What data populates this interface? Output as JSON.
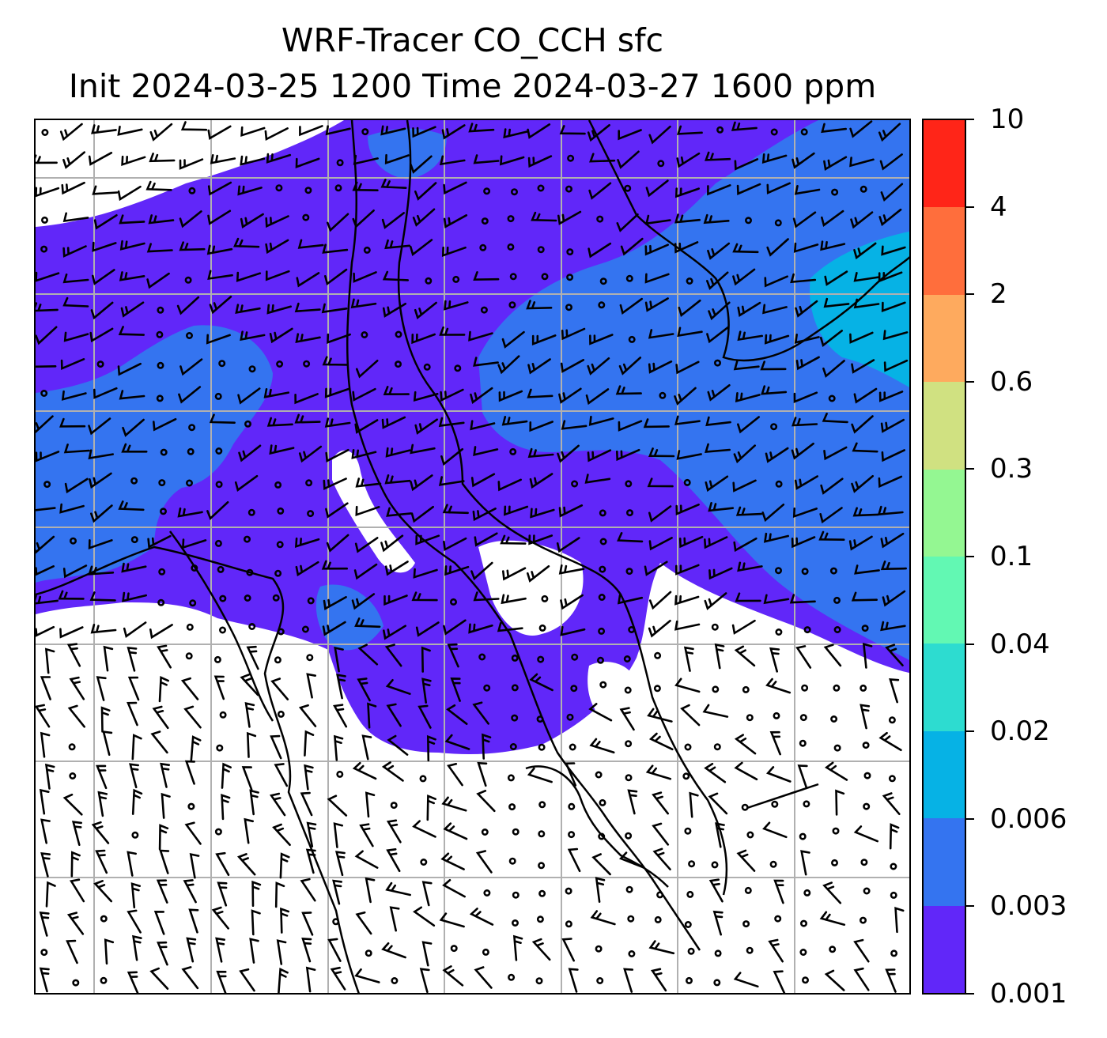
{
  "title": {
    "line1": "WRF-Tracer CO_CCH sfc",
    "line2": "Init 2024-03-25 1200 Time 2024-03-27 1600 ppm"
  },
  "map": {
    "field": "CO_CCH",
    "level": "sfc",
    "units": "ppm",
    "overlay": "wind barbs",
    "gridlines": true,
    "coastlines": true
  },
  "colorbar": {
    "position": "right",
    "levels": [
      "0.001",
      "0.003",
      "0.006",
      "0.02",
      "0.04",
      "0.1",
      "0.3",
      "0.6",
      "2",
      "4",
      "10"
    ],
    "colors": [
      "#6127f9",
      "#3474f0",
      "#06b2e5",
      "#2ddcd0",
      "#62f8b3",
      "#94f792",
      "#d0e181",
      "#feaa5e",
      "#ff6e3c",
      "#ff2518"
    ]
  }
}
